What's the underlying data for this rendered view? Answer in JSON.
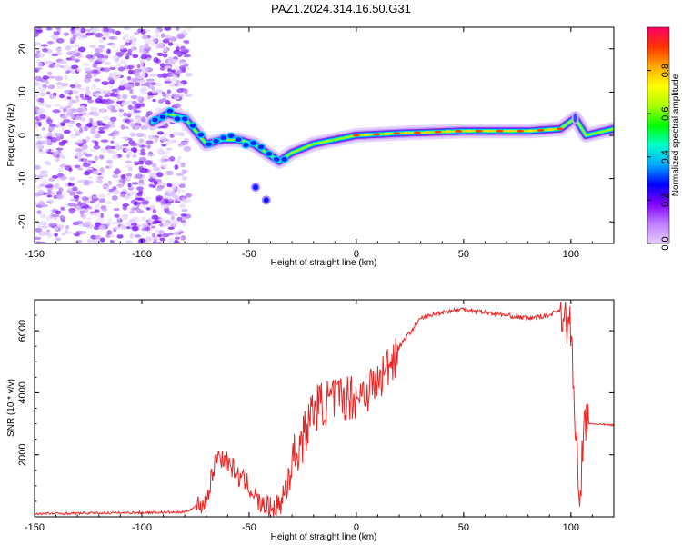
{
  "title": "PAZ1.2024.314.16.50.G31",
  "chart_data": [
    {
      "type": "heatmap",
      "name": "spectrogram",
      "xlabel": "Height of straight line (km)",
      "ylabel": "Frequency (Hz)",
      "xlim": [
        -150,
        120
      ],
      "ylim": [
        -25,
        25
      ],
      "xticks": [
        -150,
        -100,
        -50,
        0,
        50,
        100
      ],
      "yticks": [
        -20,
        -10,
        0,
        10,
        20
      ],
      "colorbar": {
        "label": "Normalized spectral amplitude",
        "ticks": [
          "0.0",
          "0.2",
          "0.4",
          "0.6",
          "0.8"
        ],
        "colors": [
          "#e6ccff",
          "#c080ff",
          "#8000ff",
          "#0000ff",
          "#00aaff",
          "#00ffcc",
          "#00ff00",
          "#aaff00",
          "#ffff00",
          "#ffaa00",
          "#ff3300",
          "#ff0066"
        ]
      },
      "ridge": [
        {
          "x": -95,
          "y": 3
        },
        {
          "x": -88,
          "y": 5
        },
        {
          "x": -80,
          "y": 4
        },
        {
          "x": -75,
          "y": 1
        },
        {
          "x": -70,
          "y": -2
        },
        {
          "x": -62,
          "y": -1
        },
        {
          "x": -55,
          "y": -1
        },
        {
          "x": -48,
          "y": -2
        },
        {
          "x": -42,
          "y": -4
        },
        {
          "x": -36,
          "y": -6
        },
        {
          "x": -30,
          "y": -4
        },
        {
          "x": -20,
          "y": -2
        },
        {
          "x": -10,
          "y": -1
        },
        {
          "x": 0,
          "y": 0
        },
        {
          "x": 20,
          "y": 0.5
        },
        {
          "x": 50,
          "y": 1
        },
        {
          "x": 80,
          "y": 1
        },
        {
          "x": 95,
          "y": 1.5
        },
        {
          "x": 102,
          "y": 4
        },
        {
          "x": 107,
          "y": 0
        },
        {
          "x": 120,
          "y": 1.5
        }
      ],
      "branch": [
        {
          "x": -47,
          "y": -12
        },
        {
          "x": -42,
          "y": -15
        }
      ]
    },
    {
      "type": "line",
      "name": "snr",
      "xlabel": "Height of straight line (km)",
      "ylabel": "SNR (10 * v/v)",
      "xlim": [
        -150,
        120
      ],
      "ylim": [
        0,
        7000
      ],
      "xticks": [
        -150,
        -100,
        -50,
        0,
        50,
        100
      ],
      "yticks": [
        2000,
        4000,
        6000
      ],
      "color": "#ee2222",
      "series": [
        {
          "x": [
            -150,
            -80,
            -70,
            -65,
            -60,
            -55,
            -50,
            -45,
            -40,
            -35,
            -30,
            -25,
            -20,
            -10,
            0,
            10,
            20,
            30,
            40,
            50,
            60,
            70,
            80,
            90,
            95,
            100,
            102,
            104,
            106,
            110,
            120
          ],
          "y": [
            100,
            150,
            500,
            2000,
            1800,
            1300,
            1000,
            400,
            300,
            400,
            1800,
            2500,
            3500,
            3800,
            3900,
            4300,
            5500,
            6400,
            6600,
            6700,
            6600,
            6500,
            6400,
            6500,
            6700,
            6000,
            3000,
            200,
            3000,
            3000,
            2950
          ]
        }
      ]
    }
  ]
}
